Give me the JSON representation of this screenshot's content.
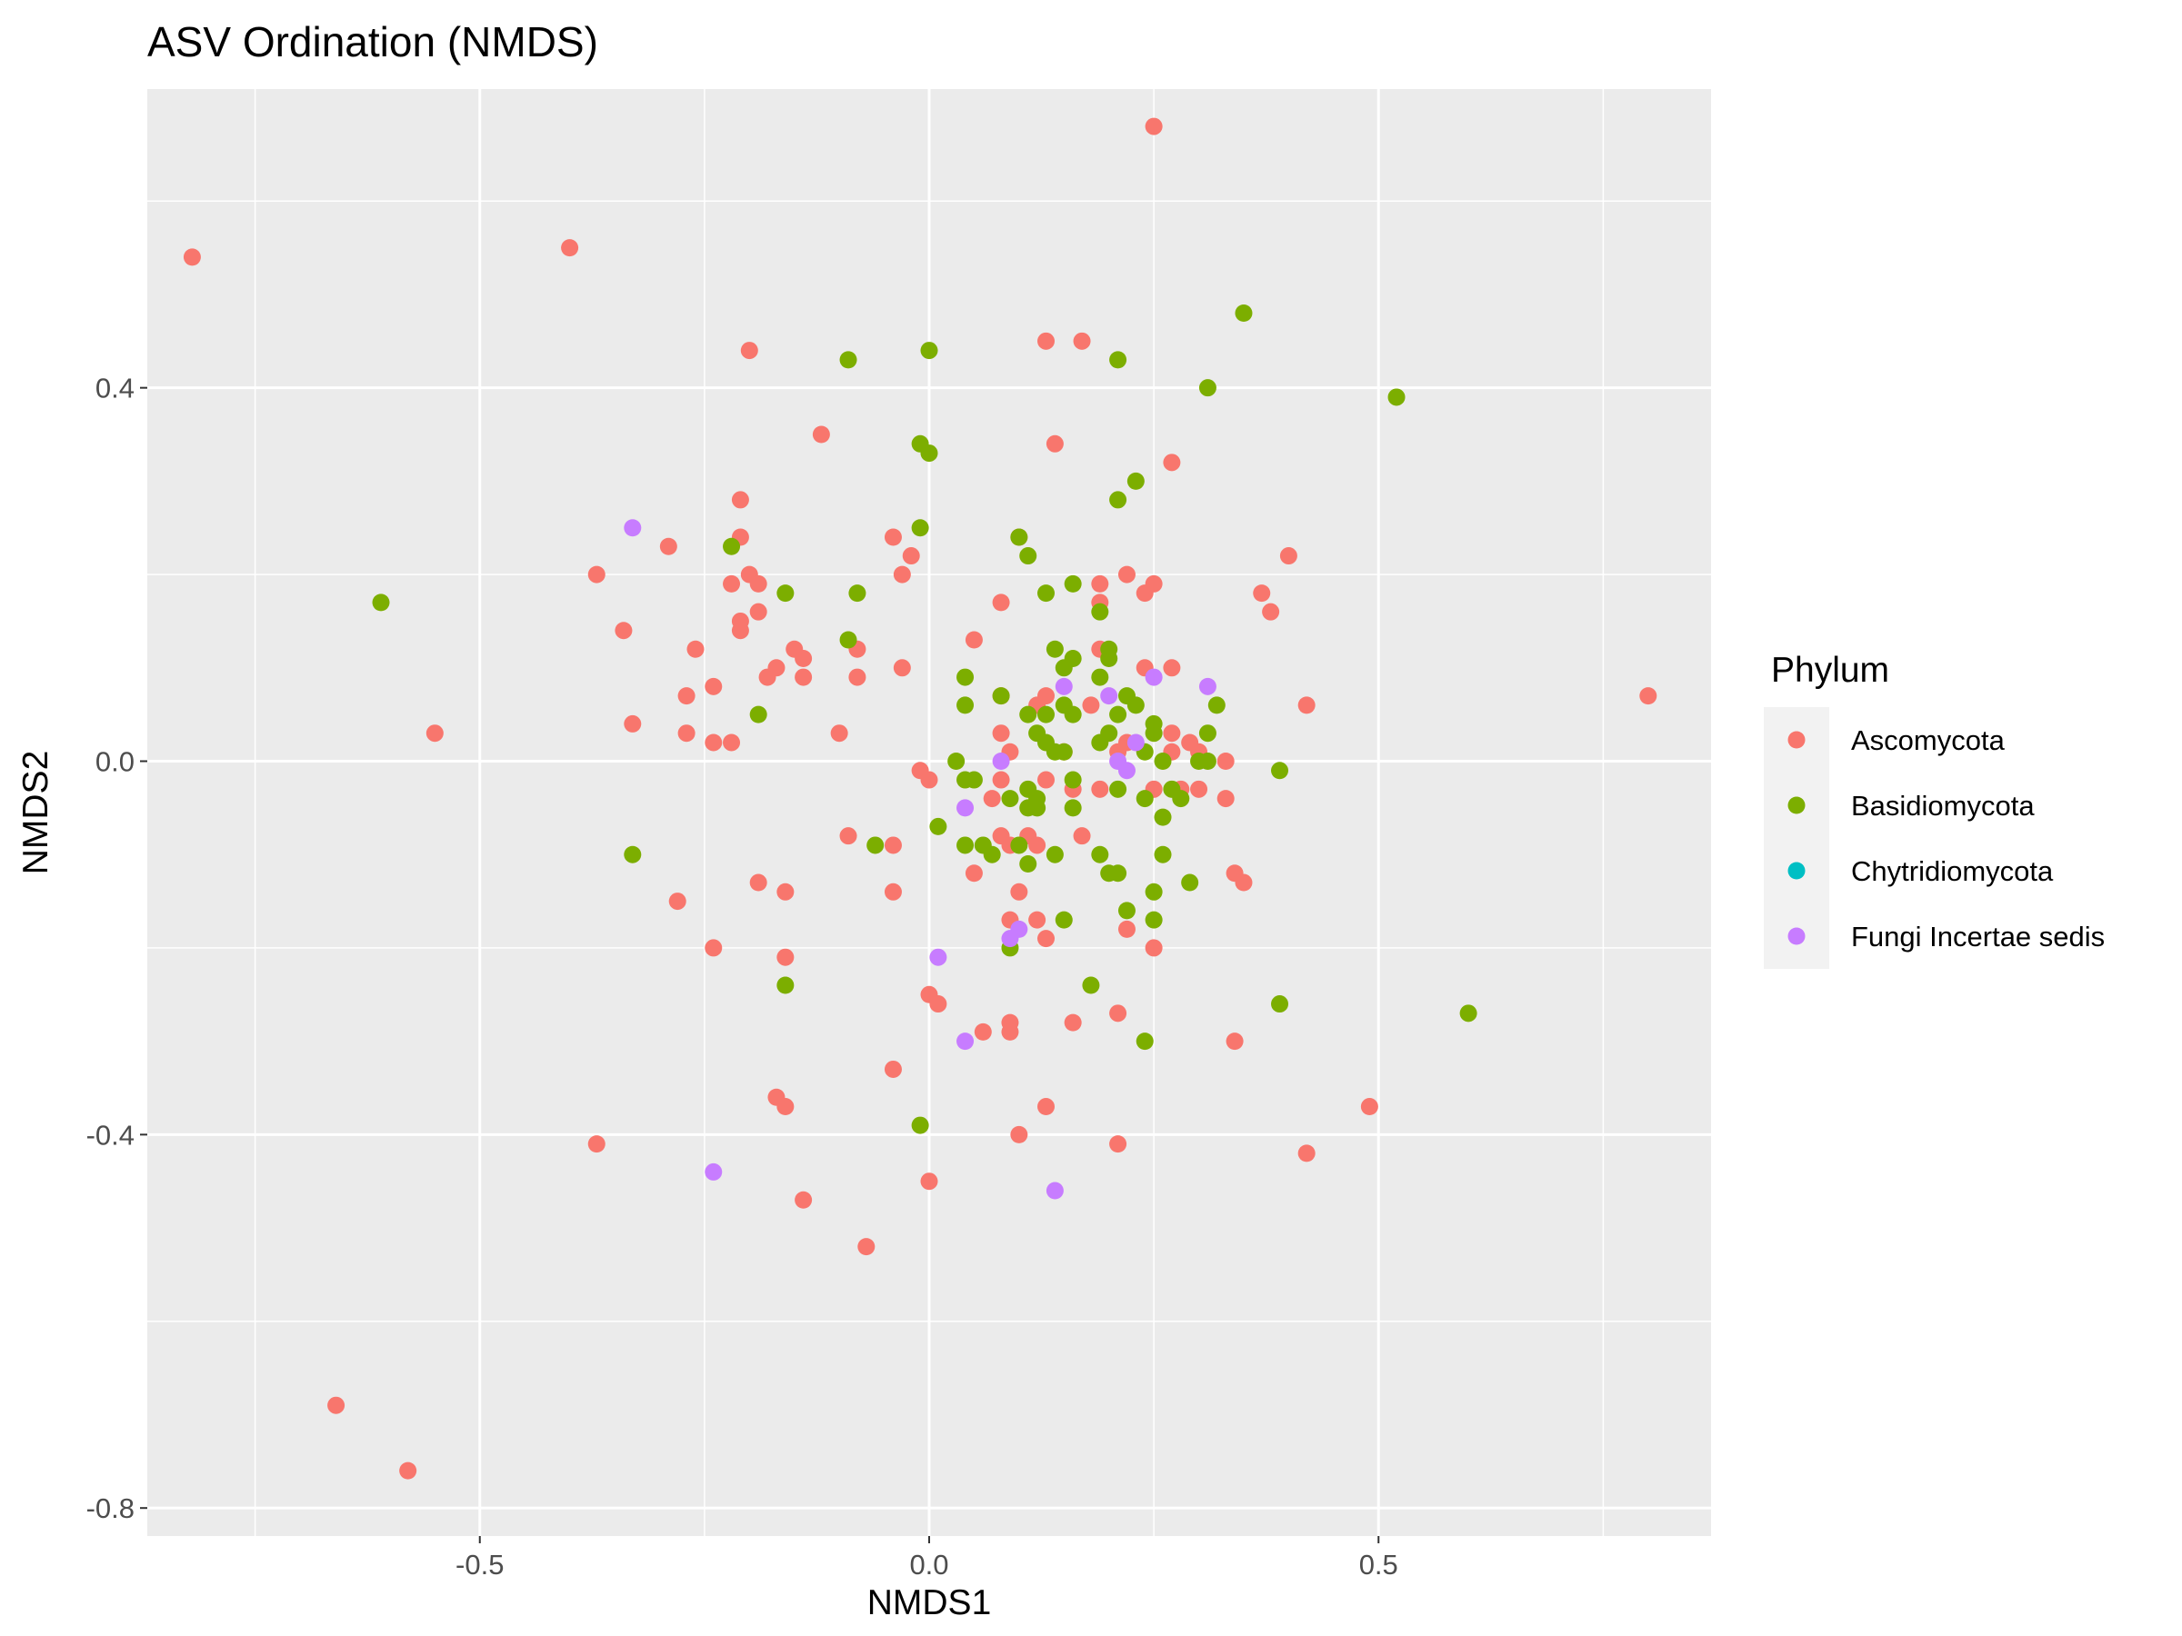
{
  "chart_data": {
    "type": "scatter",
    "title": "ASV Ordination (NMDS)",
    "xlabel": "NMDS1",
    "ylabel": "NMDS2",
    "xlim": [
      -0.87,
      0.87
    ],
    "ylim": [
      -0.83,
      0.72
    ],
    "x_ticks": [
      -0.5,
      0.0,
      0.5
    ],
    "x_tick_labels": [
      "-0.5",
      "0.0",
      "0.5"
    ],
    "y_ticks": [
      -0.8,
      -0.4,
      0.0,
      0.4
    ],
    "y_tick_labels": [
      "-0.8",
      "-0.4",
      "0.0",
      "0.4"
    ],
    "grid": true,
    "legend": {
      "title": "Phylum",
      "placement": "right",
      "entries": [
        "Ascomycota",
        "Basidiomycota",
        "Chytridiomycota",
        "Fungi Incertae sedis"
      ]
    },
    "colors": {
      "Ascomycota": "#F8766D",
      "Basidiomycota": "#7CAE00",
      "Chytridiomycota": "#00BFC4",
      "Fungi Incertae sedis": "#C77CFF"
    },
    "series": [
      {
        "name": "Ascomycota",
        "points": [
          [
            -0.82,
            0.54
          ],
          [
            -0.4,
            0.55
          ],
          [
            0.25,
            0.68
          ],
          [
            -0.2,
            0.44
          ],
          [
            0.13,
            0.45
          ],
          [
            0.17,
            0.45
          ],
          [
            -0.12,
            0.35
          ],
          [
            0.14,
            0.34
          ],
          [
            0.27,
            0.32
          ],
          [
            -0.21,
            0.28
          ],
          [
            -0.29,
            0.23
          ],
          [
            -0.21,
            0.24
          ],
          [
            -0.04,
            0.24
          ],
          [
            -0.02,
            0.22
          ],
          [
            0.4,
            0.22
          ],
          [
            -0.37,
            0.2
          ],
          [
            -0.22,
            0.19
          ],
          [
            -0.2,
            0.2
          ],
          [
            -0.19,
            0.19
          ],
          [
            -0.03,
            0.2
          ],
          [
            0.22,
            0.2
          ],
          [
            0.19,
            0.19
          ],
          [
            0.24,
            0.18
          ],
          [
            0.25,
            0.19
          ],
          [
            0.37,
            0.18
          ],
          [
            0.38,
            0.16
          ],
          [
            0.08,
            0.17
          ],
          [
            0.19,
            0.17
          ],
          [
            -0.34,
            0.14
          ],
          [
            -0.21,
            0.15
          ],
          [
            -0.21,
            0.14
          ],
          [
            -0.19,
            0.16
          ],
          [
            -0.15,
            0.12
          ],
          [
            -0.14,
            0.11
          ],
          [
            -0.08,
            0.12
          ],
          [
            0.05,
            0.13
          ],
          [
            0.19,
            0.12
          ],
          [
            -0.26,
            0.12
          ],
          [
            -0.17,
            0.1
          ],
          [
            -0.18,
            0.09
          ],
          [
            -0.14,
            0.09
          ],
          [
            -0.08,
            0.09
          ],
          [
            -0.03,
            0.1
          ],
          [
            0.24,
            0.1
          ],
          [
            0.27,
            0.1
          ],
          [
            -0.27,
            0.07
          ],
          [
            -0.24,
            0.08
          ],
          [
            0.1,
            0.24
          ],
          [
            0.08,
            0.07
          ],
          [
            0.12,
            0.06
          ],
          [
            0.13,
            0.07
          ],
          [
            0.18,
            0.06
          ],
          [
            0.42,
            0.06
          ],
          [
            0.8,
            0.07
          ],
          [
            -0.33,
            0.04
          ],
          [
            -0.55,
            0.03
          ],
          [
            -0.27,
            0.03
          ],
          [
            -0.24,
            0.02
          ],
          [
            -0.22,
            0.02
          ],
          [
            -0.1,
            0.03
          ],
          [
            0.08,
            0.03
          ],
          [
            0.09,
            0.01
          ],
          [
            0.15,
            0.01
          ],
          [
            0.21,
            0.01
          ],
          [
            0.22,
            0.02
          ],
          [
            0.27,
            0.03
          ],
          [
            0.27,
            0.01
          ],
          [
            0.29,
            0.02
          ],
          [
            0.3,
            0.01
          ],
          [
            0.33,
            0.0
          ],
          [
            -0.01,
            -0.01
          ],
          [
            0.0,
            -0.02
          ],
          [
            0.07,
            -0.04
          ],
          [
            0.08,
            -0.02
          ],
          [
            0.13,
            -0.02
          ],
          [
            0.16,
            -0.03
          ],
          [
            0.19,
            -0.03
          ],
          [
            0.25,
            -0.03
          ],
          [
            0.28,
            -0.03
          ],
          [
            0.3,
            -0.03
          ],
          [
            0.33,
            -0.04
          ],
          [
            -0.09,
            -0.08
          ],
          [
            -0.04,
            -0.09
          ],
          [
            0.08,
            -0.08
          ],
          [
            0.09,
            -0.09
          ],
          [
            0.11,
            -0.08
          ],
          [
            0.12,
            -0.09
          ],
          [
            0.17,
            -0.08
          ],
          [
            0.05,
            -0.12
          ],
          [
            0.34,
            -0.12
          ],
          [
            -0.28,
            -0.15
          ],
          [
            -0.19,
            -0.13
          ],
          [
            -0.16,
            -0.14
          ],
          [
            -0.04,
            -0.14
          ],
          [
            0.1,
            -0.14
          ],
          [
            0.12,
            -0.17
          ],
          [
            0.09,
            -0.17
          ],
          [
            0.22,
            -0.18
          ],
          [
            -0.24,
            -0.2
          ],
          [
            -0.16,
            -0.21
          ],
          [
            0.13,
            -0.19
          ],
          [
            0.25,
            -0.2
          ],
          [
            0.35,
            -0.13
          ],
          [
            0.0,
            -0.25
          ],
          [
            0.01,
            -0.26
          ],
          [
            0.06,
            -0.29
          ],
          [
            0.09,
            -0.28
          ],
          [
            0.09,
            -0.29
          ],
          [
            0.16,
            -0.28
          ],
          [
            0.21,
            -0.27
          ],
          [
            0.34,
            -0.3
          ],
          [
            -0.04,
            -0.33
          ],
          [
            -0.17,
            -0.36
          ],
          [
            -0.16,
            -0.37
          ],
          [
            0.13,
            -0.37
          ],
          [
            0.49,
            -0.37
          ],
          [
            -0.37,
            -0.41
          ],
          [
            0.1,
            -0.4
          ],
          [
            0.21,
            -0.41
          ],
          [
            0.42,
            -0.42
          ],
          [
            0.0,
            -0.45
          ],
          [
            -0.14,
            -0.47
          ],
          [
            -0.07,
            -0.52
          ],
          [
            -0.66,
            -0.69
          ],
          [
            -0.58,
            -0.76
          ]
        ]
      },
      {
        "name": "Basidiomycota",
        "points": [
          [
            0.35,
            0.48
          ],
          [
            -0.09,
            0.43
          ],
          [
            0.0,
            0.44
          ],
          [
            0.21,
            0.43
          ],
          [
            0.31,
            0.4
          ],
          [
            0.52,
            0.39
          ],
          [
            -0.01,
            0.34
          ],
          [
            0.0,
            0.33
          ],
          [
            0.23,
            0.3
          ],
          [
            0.21,
            0.28
          ],
          [
            -0.01,
            0.25
          ],
          [
            -0.22,
            0.23
          ],
          [
            0.1,
            0.24
          ],
          [
            0.11,
            0.22
          ],
          [
            -0.61,
            0.17
          ],
          [
            -0.16,
            0.18
          ],
          [
            -0.08,
            0.18
          ],
          [
            0.13,
            0.18
          ],
          [
            0.16,
            0.19
          ],
          [
            0.19,
            0.16
          ],
          [
            -0.09,
            0.13
          ],
          [
            0.14,
            0.12
          ],
          [
            0.16,
            0.11
          ],
          [
            0.2,
            0.12
          ],
          [
            0.2,
            0.11
          ],
          [
            0.04,
            0.09
          ],
          [
            0.15,
            0.1
          ],
          [
            0.19,
            0.09
          ],
          [
            0.08,
            0.07
          ],
          [
            0.22,
            0.07
          ],
          [
            0.23,
            0.06
          ],
          [
            0.32,
            0.06
          ],
          [
            -0.19,
            0.05
          ],
          [
            0.04,
            0.06
          ],
          [
            0.11,
            0.05
          ],
          [
            0.13,
            0.05
          ],
          [
            0.15,
            0.06
          ],
          [
            0.16,
            0.05
          ],
          [
            0.21,
            0.05
          ],
          [
            0.12,
            0.03
          ],
          [
            0.13,
            0.02
          ],
          [
            0.2,
            0.03
          ],
          [
            0.25,
            0.04
          ],
          [
            0.25,
            0.03
          ],
          [
            0.31,
            0.03
          ],
          [
            0.14,
            0.01
          ],
          [
            0.15,
            0.01
          ],
          [
            0.19,
            0.02
          ],
          [
            0.24,
            0.01
          ],
          [
            0.26,
            0.0
          ],
          [
            0.3,
            0.0
          ],
          [
            0.31,
            0.0
          ],
          [
            0.03,
            0.0
          ],
          [
            0.04,
            -0.02
          ],
          [
            0.05,
            -0.02
          ],
          [
            0.11,
            -0.03
          ],
          [
            0.12,
            -0.04
          ],
          [
            0.16,
            -0.02
          ],
          [
            0.21,
            -0.03
          ],
          [
            0.24,
            -0.04
          ],
          [
            0.27,
            -0.03
          ],
          [
            0.28,
            -0.04
          ],
          [
            0.39,
            -0.01
          ],
          [
            0.01,
            -0.07
          ],
          [
            0.09,
            -0.04
          ],
          [
            0.11,
            -0.05
          ],
          [
            0.12,
            -0.05
          ],
          [
            0.16,
            -0.05
          ],
          [
            0.26,
            -0.06
          ],
          [
            0.04,
            -0.09
          ],
          [
            0.06,
            -0.09
          ],
          [
            0.07,
            -0.1
          ],
          [
            0.1,
            -0.09
          ],
          [
            0.11,
            -0.11
          ],
          [
            0.14,
            -0.1
          ],
          [
            0.19,
            -0.1
          ],
          [
            0.2,
            -0.12
          ],
          [
            0.21,
            -0.12
          ],
          [
            0.26,
            -0.1
          ],
          [
            -0.06,
            -0.09
          ],
          [
            -0.33,
            -0.1
          ],
          [
            0.25,
            -0.14
          ],
          [
            0.29,
            -0.13
          ],
          [
            0.15,
            -0.17
          ],
          [
            0.22,
            -0.16
          ],
          [
            0.25,
            -0.17
          ],
          [
            0.09,
            -0.2
          ],
          [
            -0.16,
            -0.24
          ],
          [
            0.18,
            -0.24
          ],
          [
            0.39,
            -0.26
          ],
          [
            0.6,
            -0.27
          ],
          [
            0.24,
            -0.3
          ],
          [
            -0.01,
            -0.39
          ]
        ]
      },
      {
        "name": "Chytridiomycota",
        "points": []
      },
      {
        "name": "Fungi Incertae sedis",
        "points": [
          [
            -0.33,
            0.25
          ],
          [
            0.15,
            0.08
          ],
          [
            0.2,
            0.07
          ],
          [
            0.25,
            0.09
          ],
          [
            0.31,
            0.08
          ],
          [
            0.23,
            0.02
          ],
          [
            0.08,
            0.0
          ],
          [
            0.21,
            0.0
          ],
          [
            0.22,
            -0.01
          ],
          [
            0.04,
            -0.05
          ],
          [
            0.1,
            -0.18
          ],
          [
            0.09,
            -0.19
          ],
          [
            0.01,
            -0.21
          ],
          [
            0.04,
            -0.3
          ],
          [
            -0.24,
            -0.44
          ],
          [
            0.14,
            -0.46
          ]
        ]
      }
    ]
  }
}
